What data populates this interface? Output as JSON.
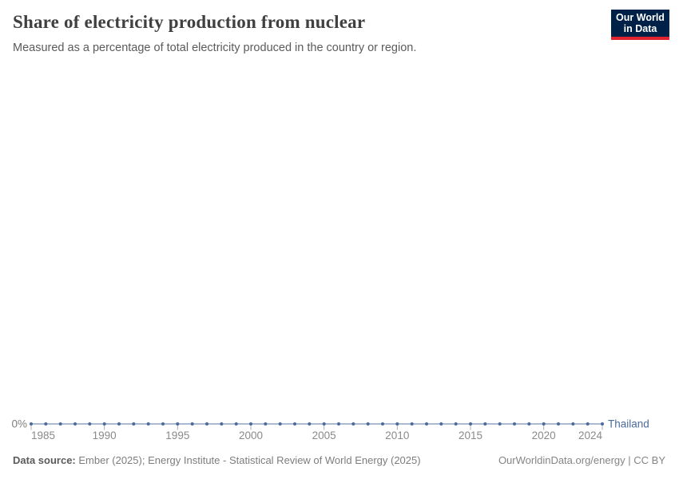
{
  "header": {
    "title": "Share of electricity production from nuclear",
    "subtitle": "Measured as a percentage of total electricity produced in the country or region.",
    "logo": {
      "line1": "Our World",
      "line2": "in Data",
      "bg_color": "#002147",
      "accent_color": "#e0232e"
    }
  },
  "chart_data": {
    "type": "line",
    "title": "Share of electricity production from nuclear",
    "xlabel": "",
    "ylabel": "",
    "xlim": [
      1985,
      2024
    ],
    "ylim": [
      0,
      0
    ],
    "grid": false,
    "legend_position": "right-of-line",
    "y_axis_label": "0%",
    "x_ticks": [
      1985,
      1990,
      1995,
      2000,
      2005,
      2010,
      2015,
      2020,
      2024
    ],
    "series": [
      {
        "name": "Thailand",
        "color": "#4C6A9C",
        "x": [
          1985,
          1986,
          1987,
          1988,
          1989,
          1990,
          1991,
          1992,
          1993,
          1994,
          1995,
          1996,
          1997,
          1998,
          1999,
          2000,
          2001,
          2002,
          2003,
          2004,
          2005,
          2006,
          2007,
          2008,
          2009,
          2010,
          2011,
          2012,
          2013,
          2014,
          2015,
          2016,
          2017,
          2018,
          2019,
          2020,
          2021,
          2022,
          2023,
          2024
        ],
        "values": [
          0,
          0,
          0,
          0,
          0,
          0,
          0,
          0,
          0,
          0,
          0,
          0,
          0,
          0,
          0,
          0,
          0,
          0,
          0,
          0,
          0,
          0,
          0,
          0,
          0,
          0,
          0,
          0,
          0,
          0,
          0,
          0,
          0,
          0,
          0,
          0,
          0,
          0,
          0,
          0
        ]
      }
    ]
  },
  "footer": {
    "source_label": "Data source:",
    "source_text": " Ember (2025); Energy Institute - Statistical Review of World Energy (2025)",
    "credit": "OurWorldinData.org/energy | CC BY"
  },
  "colors": {
    "series_blue": "#4C6A9C",
    "tick_gray": "#adadad",
    "tick_label_gray": "#8a8a8a",
    "title_gray": "#404040",
    "subtitle_gray": "#5b5b5b"
  }
}
